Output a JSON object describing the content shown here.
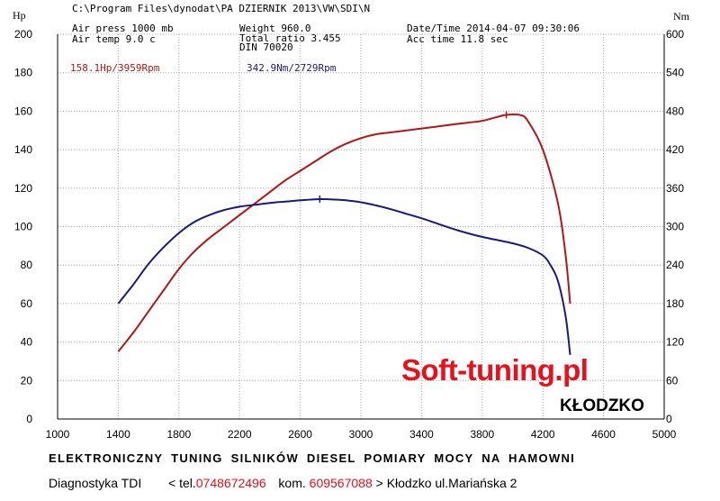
{
  "header": {
    "path": "C:\\Program Files\\dynodat\\PA DZIERNIK 2013\\VW\\SDI\\N",
    "air_press": "Air press  1000 mb",
    "air_temp": "Air temp   9.0 c",
    "weight": "Weight   960.0",
    "total_ratio": "Total ratio 3.455",
    "din": "DIN 70020",
    "datetime": "Date/Time  2014-04-07 09:30:06",
    "acc_time": "Acc time   11.8 sec"
  },
  "axis_units": {
    "left": "Hp",
    "right": "Nm"
  },
  "peak_labels": {
    "power": "158.1Hp/3959Rpm",
    "torque": "342.9Nm/2729Rpm"
  },
  "watermark": {
    "brand": "Soft-tuning.pl",
    "city": "KŁODZKO"
  },
  "footer": {
    "line1": "ELEKTRONICZNY TUNING SILNIKÓW DIESEL  POMIARY MOCY NA HAMOWNI",
    "diag": "Diagnostyka TDI",
    "tel_prefix": "< tel.",
    "tel": "0748672496",
    "kom_prefix": "kom.",
    "kom": "609567088",
    "address": "> Kłodzko ul.Mariańska 2"
  },
  "colors": {
    "power": "#b01818",
    "torque": "#1a1a7a",
    "accent": "#e8101a",
    "grid": "#a8a8a8"
  },
  "chart_data": {
    "type": "line",
    "x_ticks": [
      1000,
      1400,
      1800,
      2200,
      2600,
      3000,
      3400,
      3800,
      4200,
      4600,
      5000
    ],
    "y_left_ticks": [
      0,
      20,
      40,
      60,
      80,
      100,
      120,
      140,
      160,
      180,
      200
    ],
    "y_right_ticks": [
      0,
      60,
      120,
      180,
      240,
      300,
      360,
      420,
      480,
      540,
      600
    ],
    "xlim": [
      1000,
      5000
    ],
    "ylim_left": [
      0,
      200
    ],
    "ylim_right": [
      0,
      600
    ],
    "grid": true,
    "series": [
      {
        "name": "158.1Hp/3959Rpm",
        "axis": "left",
        "unit": "Hp",
        "x": [
          1400,
          1500,
          1600,
          1700,
          1800,
          1900,
          2000,
          2100,
          2200,
          2300,
          2400,
          2500,
          2600,
          2700,
          2800,
          2900,
          3000,
          3100,
          3200,
          3300,
          3400,
          3500,
          3600,
          3700,
          3800,
          3900,
          3959,
          4050,
          4100,
          4200,
          4300,
          4350,
          4380
        ],
        "y": [
          35,
          45,
          56,
          67,
          78,
          87,
          94,
          100,
          106,
          112,
          118,
          124,
          129,
          134,
          139,
          143,
          146,
          148,
          149,
          150,
          151,
          152,
          153,
          154,
          155,
          157,
          158.1,
          158,
          155,
          140,
          112,
          85,
          60
        ]
      },
      {
        "name": "342.9Nm/2729Rpm",
        "axis": "right",
        "unit": "Nm",
        "x": [
          1400,
          1500,
          1600,
          1700,
          1800,
          1900,
          2000,
          2100,
          2200,
          2300,
          2400,
          2500,
          2600,
          2729,
          2800,
          2900,
          3000,
          3100,
          3200,
          3300,
          3400,
          3500,
          3600,
          3700,
          3800,
          3900,
          4000,
          4100,
          4200,
          4250,
          4300,
          4350,
          4380
        ],
        "y": [
          180,
          210,
          242,
          268,
          290,
          307,
          318,
          326,
          331,
          334,
          337,
          339,
          341,
          342.9,
          342.5,
          341,
          338,
          333,
          327,
          320,
          313,
          305,
          297,
          290,
          284,
          279,
          274,
          267,
          255,
          240,
          215,
          160,
          100
        ]
      }
    ]
  }
}
